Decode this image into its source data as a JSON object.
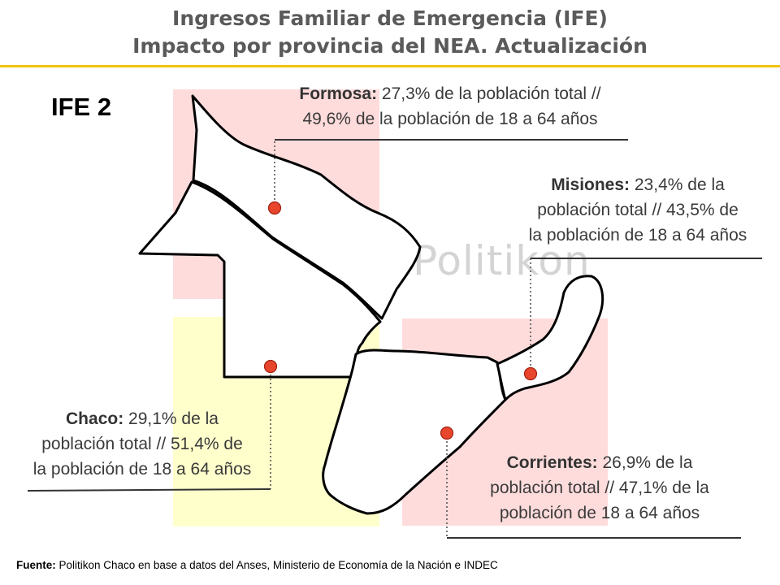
{
  "title": {
    "line1": "Ingresos Familiar de Emergencia (IFE)",
    "line2": "Impacto por provincia del NEA. Actualización"
  },
  "program_label": "IFE 2",
  "watermark": "Politikon",
  "colors": {
    "title": "#5a5a5a",
    "rule": "#f0c400",
    "formosa_bg": "#ffdcdc",
    "misiones_bg": "#ffdcdc",
    "corrientes_bg": "#ffdcdc",
    "chaco_bg": "#ffffcc",
    "marker": "#e8462c"
  },
  "provinces": {
    "formosa": {
      "name": "Formosa:",
      "line1_rest": " 27,3% de la población total //",
      "line2": "49,6% de la población de 18 a 64 años"
    },
    "misiones": {
      "name": "Misiones:",
      "line1_rest": " 23,4% de la",
      "line2": "población total // 43,5% de",
      "line3": "la población de 18 a 64 años"
    },
    "chaco": {
      "name": "Chaco:",
      "line1_rest": " 29,1% de la",
      "line2": "población total // 51,4% de",
      "line3": "la población de 18 a 64 años"
    },
    "corrientes": {
      "name": "Corrientes:",
      "line1_rest": " 26,9% de la",
      "line2": "población total // 47,1% de la",
      "line3": "población de 18 a 64 años"
    }
  },
  "source": {
    "label": "Fuente:",
    "text": " Politikon Chaco en base a datos del Anses, Ministerio de Economía de la Nación e INDEC"
  }
}
